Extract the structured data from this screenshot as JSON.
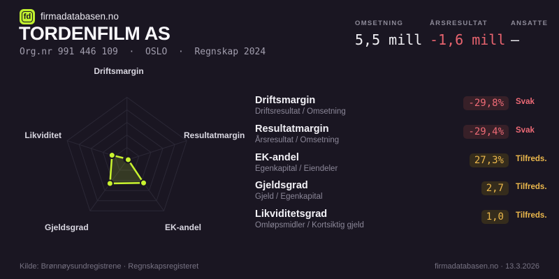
{
  "brand": {
    "logo_text": "fd",
    "site": "firmadatabasen.no"
  },
  "header": {
    "title": "TORDENFILM AS",
    "subtitle": "Org.nr 991 446 109  ·  OSLO  ·  Regnskap 2024"
  },
  "stats": [
    {
      "label": "OMSETNING",
      "value": "5,5 mill",
      "tone": "white"
    },
    {
      "label": "ÅRSRESULTAT",
      "value": "-1,6 mill",
      "tone": "red"
    },
    {
      "label": "ANSATTE",
      "value": "–",
      "tone": "white"
    }
  ],
  "chart_data": {
    "type": "radar",
    "title": "",
    "axes": [
      "Driftsmargin",
      "Resultatmargin",
      "EK-andel",
      "Gjeldsgrad",
      "Likviditet"
    ],
    "series": [
      {
        "name": "TORDENFILM AS",
        "normalized_values": [
          0.02,
          0.02,
          0.45,
          0.46,
          0.25
        ]
      }
    ],
    "grid_levels": [
      0.2,
      0.4,
      0.6,
      0.8,
      1.0
    ],
    "legend_position": "none",
    "colors": {
      "stroke": "#c9f32f",
      "fill": "rgba(201,243,47,0.16)",
      "grid": "#2b2836",
      "dot_ring": "#1a1622"
    }
  },
  "metrics": [
    {
      "name": "Driftsmargin",
      "formula": "Driftsresultat / Omsetning",
      "value": "-29,8%",
      "status": "Svak",
      "tone": "red"
    },
    {
      "name": "Resultatmargin",
      "formula": "Årsresultat / Omsetning",
      "value": "-29,4%",
      "status": "Svak",
      "tone": "red"
    },
    {
      "name": "EK-andel",
      "formula": "Egenkapital / Eiendeler",
      "value": "27,3%",
      "status": "Tilfreds.",
      "tone": "amber"
    },
    {
      "name": "Gjeldsgrad",
      "formula": "Gjeld / Egenkapital",
      "value": "2,7",
      "status": "Tilfreds.",
      "tone": "amber"
    },
    {
      "name": "Likviditetsgrad",
      "formula": "Omløpsmidler / Kortsiktig gjeld",
      "value": "1,0",
      "status": "Tilfreds.",
      "tone": "amber"
    }
  ],
  "footer": {
    "source": "Kilde: Brønnøysundregistrene · Regnskapsregisteret",
    "site_date": "firmadatabasen.no · 13.3.2026"
  },
  "accent_colors": {
    "lime": "#c0f12f",
    "red": "#ee6a76",
    "amber": "#ecb84c",
    "background": "#1a1622"
  }
}
